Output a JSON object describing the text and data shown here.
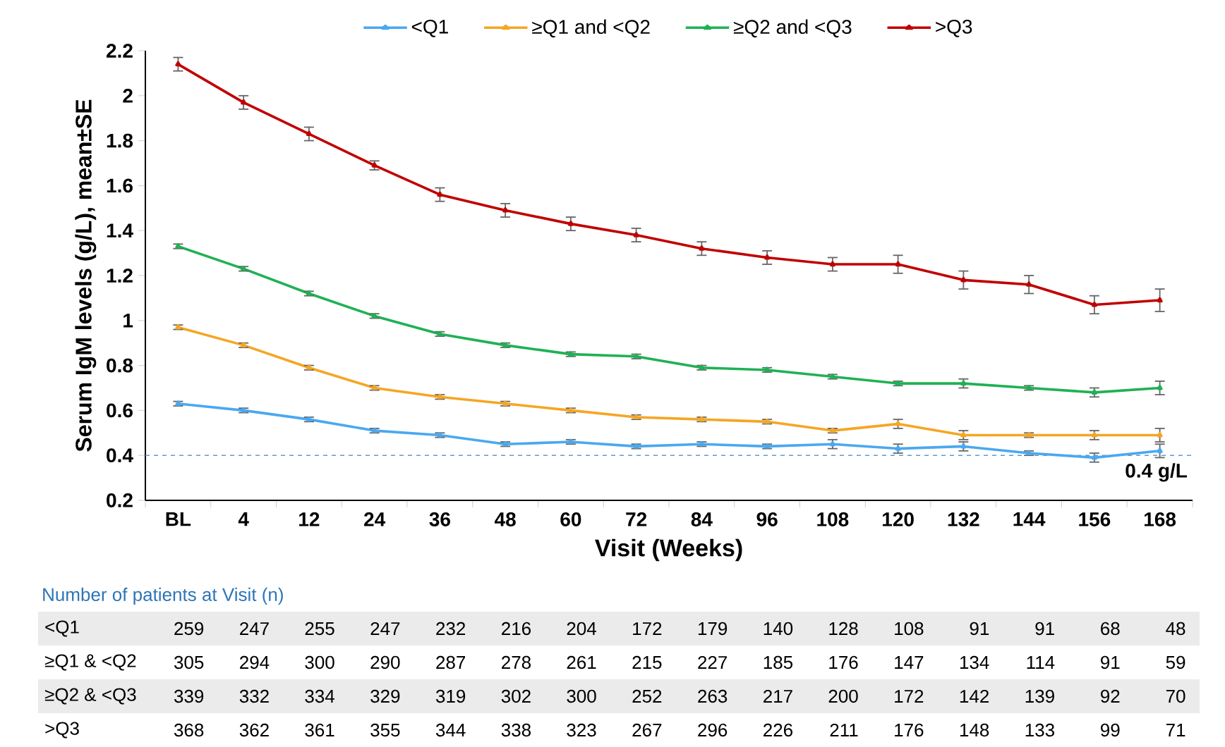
{
  "chart_data": {
    "type": "line",
    "ylabel": "Serum IgM levels (g/L), mean±SE",
    "xlabel": "Visit (Weeks)",
    "categories": [
      "BL",
      "4",
      "12",
      "24",
      "36",
      "48",
      "60",
      "72",
      "84",
      "96",
      "108",
      "120",
      "132",
      "144",
      "156",
      "168"
    ],
    "ylim": [
      0.2,
      2.2
    ],
    "yticks": [
      0.2,
      0.4,
      0.6,
      0.8,
      1,
      1.2,
      1.4,
      1.6,
      1.8,
      2,
      2.2
    ],
    "legend": "top",
    "marker": "triangle",
    "line_style": "solid",
    "series": [
      {
        "name": "<Q1",
        "color": "#4aa8f0",
        "values": [
          0.63,
          0.6,
          0.56,
          0.51,
          0.49,
          0.45,
          0.46,
          0.44,
          0.45,
          0.44,
          0.45,
          0.43,
          0.44,
          0.41,
          0.39,
          0.42
        ],
        "errors": [
          0.01,
          0.01,
          0.01,
          0.01,
          0.01,
          0.01,
          0.01,
          0.01,
          0.01,
          0.01,
          0.02,
          0.02,
          0.02,
          0.01,
          0.02,
          0.03
        ]
      },
      {
        "name": "≥Q1 and <Q2",
        "color": "#f5a623",
        "values": [
          0.97,
          0.89,
          0.79,
          0.7,
          0.66,
          0.63,
          0.6,
          0.57,
          0.56,
          0.55,
          0.51,
          0.54,
          0.49,
          0.49,
          0.49,
          0.49
        ],
        "errors": [
          0.01,
          0.01,
          0.01,
          0.01,
          0.01,
          0.01,
          0.01,
          0.01,
          0.01,
          0.01,
          0.01,
          0.02,
          0.02,
          0.01,
          0.02,
          0.03
        ]
      },
      {
        "name": "≥Q2 and <Q3",
        "color": "#1fb155",
        "values": [
          1.33,
          1.23,
          1.12,
          1.02,
          0.94,
          0.89,
          0.85,
          0.84,
          0.79,
          0.78,
          0.75,
          0.72,
          0.72,
          0.7,
          0.68,
          0.7
        ],
        "errors": [
          0.01,
          0.01,
          0.01,
          0.01,
          0.01,
          0.01,
          0.01,
          0.01,
          0.01,
          0.01,
          0.01,
          0.01,
          0.02,
          0.01,
          0.02,
          0.03
        ]
      },
      {
        "name": ">Q3",
        "color": "#c00000",
        "values": [
          2.14,
          1.97,
          1.83,
          1.69,
          1.56,
          1.49,
          1.43,
          1.38,
          1.32,
          1.28,
          1.25,
          1.25,
          1.18,
          1.16,
          1.07,
          1.09
        ],
        "errors": [
          0.03,
          0.03,
          0.03,
          0.02,
          0.03,
          0.03,
          0.03,
          0.03,
          0.03,
          0.03,
          0.03,
          0.04,
          0.04,
          0.04,
          0.04,
          0.05
        ]
      }
    ],
    "ref_lines": [
      {
        "axis": "y",
        "value": 0.4,
        "label": "0.4 g/L",
        "color": "#5b9bd5",
        "line_style": "dashed"
      }
    ],
    "annotations": [
      "Number of patients at Visit (n)",
      "<Q1",
      "259",
      "247",
      "255",
      "247",
      "232",
      "216",
      "204",
      "172",
      "179",
      "140",
      "128",
      "108",
      "91",
      "91",
      "68",
      "48",
      "≥Q1 & <Q2",
      "305",
      "294",
      "300",
      "290",
      "287",
      "278",
      "261",
      "215",
      "227",
      "185",
      "176",
      "147",
      "134",
      "114",
      "91",
      "59",
      "≥Q2 & <Q3",
      "339",
      "332",
      "334",
      "329",
      "319",
      "302",
      "300",
      "252",
      "263",
      "217",
      "200",
      "172",
      "142",
      "139",
      "92",
      "70",
      ">Q3",
      "368",
      "362",
      "361",
      "355",
      "344",
      "338",
      "323",
      "267",
      "296",
      "226",
      "211",
      "176",
      "148",
      "133",
      "99",
      "71"
    ]
  }
}
